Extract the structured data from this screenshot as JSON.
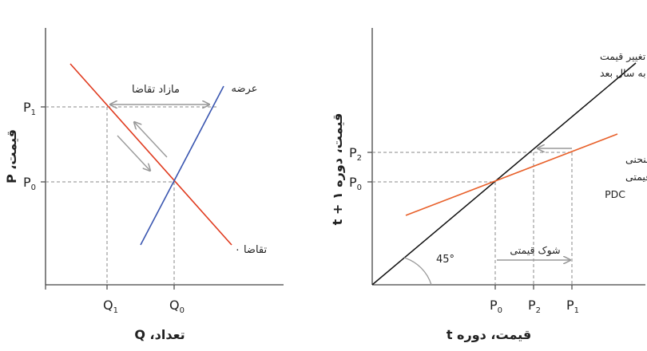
{
  "left": {
    "y_axis_label": "قیمت، P",
    "x_axis_label": "تعداد، Q",
    "p1": "P1",
    "p0": "P0",
    "q1": "Q1",
    "q0": "Q0",
    "supply_label": "عرضه",
    "demand_label": "تقاضا ۰",
    "excess_demand_label": "مازاد تقاضا",
    "colors": {
      "supply": "#3a56b0",
      "demand": "#e03a1e"
    }
  },
  "right": {
    "y_axis_label": "قیمت، دوره ۱ + t",
    "x_axis_label": "قیمت، دوره t",
    "p2_y": "P2",
    "p0_y": "P0",
    "p0_x": "P0",
    "p2_x": "P2",
    "p1_x": "P1",
    "no_change_line1": "عدم تغییر قیمت",
    "no_change_line2": "از یک سال به سال بعد",
    "pdc_line1": "منحنی",
    "pdc_line2": "پویایی قیمتی",
    "pdc_line3": "PDC",
    "price_shock_label": "شوک قیمتی",
    "angle_label": "45°",
    "colors": {
      "diagonal": "#111111",
      "pdc": "#e8602a"
    }
  }
}
